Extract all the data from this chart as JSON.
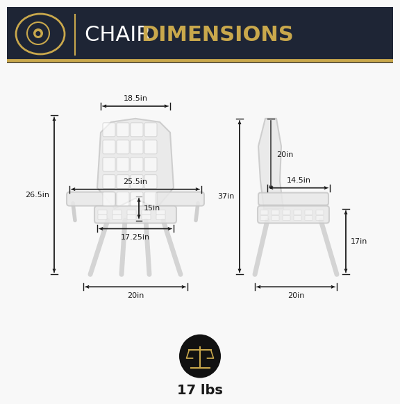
{
  "header_bg_top": "#1e2535",
  "header_bg_bot": "#2d3448",
  "header_gold": "#c9a84c",
  "header_text_chair": "CHAIR ",
  "header_text_dim": "DIMENSIONS",
  "header_white": "#ffffff",
  "body_bg": "#f8f8f8",
  "chair_fill": "#e8e8e8",
  "chair_edge": "#c8c8c8",
  "chair_alpha": 0.85,
  "dim_line_color": "#1a1a1a",
  "dim_text_color": "#1a1a1a",
  "dim_fs": 8.0,
  "front_dims": {
    "top_width_label": "18.5in",
    "arm_width_label": "25.5in",
    "seat_ht_label": "15in",
    "seat_dep_label": "17.25in",
    "total_ht_label": "26.5in",
    "bot_width_label": "20in"
  },
  "side_dims": {
    "back_ht_label": "20in",
    "arm_dep_label": "14.5in",
    "total_ht_label": "37in",
    "seat_ht_label": "17in",
    "bot_dep_label": "20in"
  },
  "weight_label": "17 lbs",
  "icon_dark": "#111111",
  "icon_gold": "#c9a84c"
}
